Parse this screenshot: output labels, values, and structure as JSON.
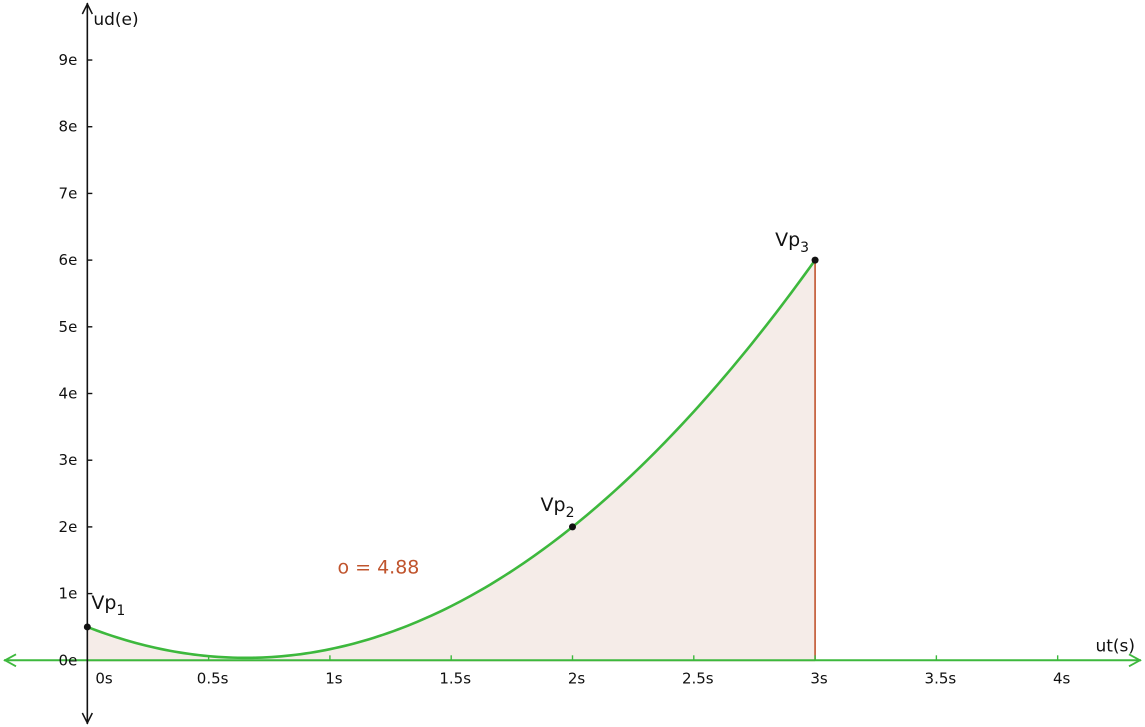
{
  "chart_data": {
    "type": "line",
    "title": "",
    "xlabel": "ut(s)",
    "ylabel": "ud(e)",
    "xlim": [
      -0.36,
      4.36
    ],
    "ylim": [
      -1.0,
      9.9
    ],
    "x_ticks": [
      {
        "value": 0,
        "label": "0s"
      },
      {
        "value": 0.5,
        "label": "0.5s"
      },
      {
        "value": 1,
        "label": "1s"
      },
      {
        "value": 1.5,
        "label": "1.5s"
      },
      {
        "value": 2,
        "label": "2s"
      },
      {
        "value": 2.5,
        "label": "2.5s"
      },
      {
        "value": 3,
        "label": "3s"
      },
      {
        "value": 3.5,
        "label": "3.5s"
      },
      {
        "value": 4,
        "label": "4s"
      }
    ],
    "y_ticks": [
      {
        "value": 0,
        "label": "0e"
      },
      {
        "value": 1,
        "label": "1e"
      },
      {
        "value": 2,
        "label": "2e"
      },
      {
        "value": 3,
        "label": "3e"
      },
      {
        "value": 4,
        "label": "4e"
      },
      {
        "value": 5,
        "label": "5e"
      },
      {
        "value": 6,
        "label": "6e"
      },
      {
        "value": 7,
        "label": "7e"
      },
      {
        "value": 8,
        "label": "8e"
      },
      {
        "value": 9,
        "label": "9e"
      }
    ],
    "grid": false,
    "curve": {
      "x_range": [
        0,
        3
      ],
      "points": [
        {
          "name": "Vp",
          "subscript": "1",
          "x": 0,
          "y": 0.5
        },
        {
          "name": "Vp",
          "subscript": "2",
          "x": 2,
          "y": 2
        },
        {
          "name": "Vp",
          "subscript": "3",
          "x": 3,
          "y": 6
        }
      ],
      "color": "#3db83d"
    },
    "shaded_area": {
      "x_range": [
        0,
        3
      ],
      "label": "o = 4.88",
      "label_at": {
        "x": 1.2,
        "y": 1.3
      },
      "fill": "#f5ece8",
      "edge_color": "#c0542d"
    },
    "axis_color": "#111111",
    "x_axis_color": "#3db83d"
  }
}
